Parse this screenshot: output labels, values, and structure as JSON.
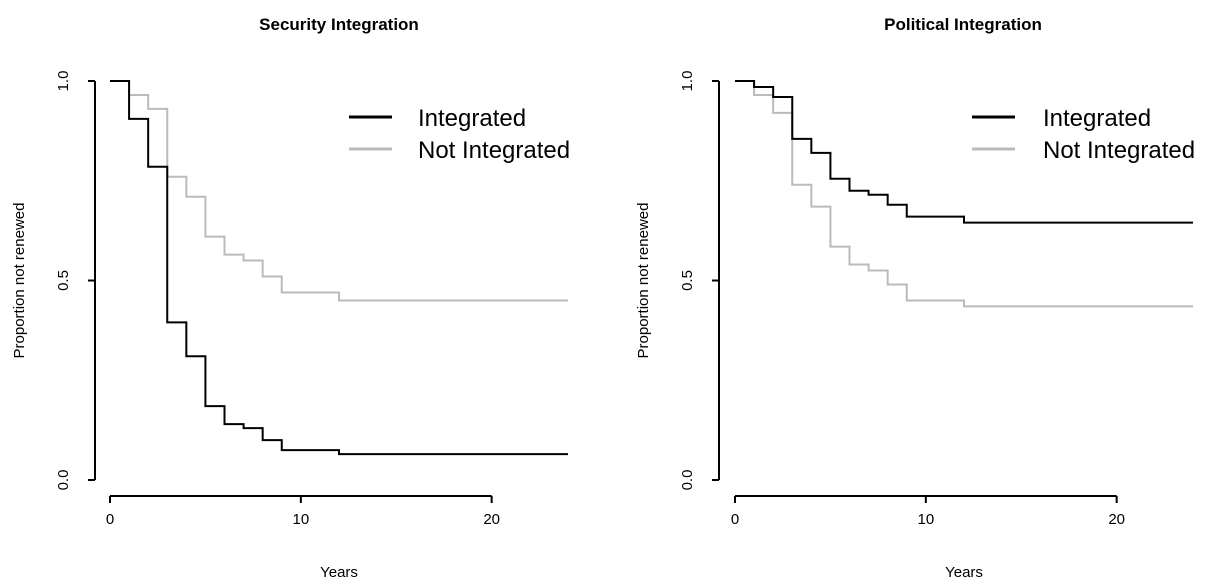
{
  "chart_data": [
    {
      "type": "line",
      "title": "Security Integration",
      "xlabel": "Years",
      "ylabel": "Proportion not renewed",
      "xlim": [
        0,
        24
      ],
      "ylim": [
        0,
        1
      ],
      "xticks": [
        0,
        10,
        20
      ],
      "yticks": [
        "0.0",
        "0.5",
        "1.0"
      ],
      "legend_placement": "top-right",
      "grid": false,
      "series": [
        {
          "name": "Integrated",
          "color": "#000000",
          "step": true,
          "x": [
            0,
            1,
            2,
            3,
            4,
            5,
            6,
            7,
            8,
            9,
            12,
            24
          ],
          "y": [
            1.0,
            0.905,
            0.785,
            0.395,
            0.31,
            0.185,
            0.14,
            0.13,
            0.1,
            0.075,
            0.065,
            0.065
          ]
        },
        {
          "name": "Not Integrated",
          "color": "#bbbbbb",
          "step": true,
          "x": [
            0,
            1,
            2,
            3,
            4,
            5,
            6,
            7,
            8,
            9,
            12,
            24
          ],
          "y": [
            1.0,
            0.965,
            0.93,
            0.76,
            0.71,
            0.61,
            0.565,
            0.55,
            0.51,
            0.47,
            0.45,
            0.45
          ]
        }
      ]
    },
    {
      "type": "line",
      "title": "Political Integration",
      "xlabel": "Years",
      "ylabel": "Proportion not renewed",
      "xlim": [
        0,
        24
      ],
      "ylim": [
        0,
        1
      ],
      "xticks": [
        0,
        10,
        20
      ],
      "yticks": [
        "0.0",
        "0.5",
        "1.0"
      ],
      "legend_placement": "top-right",
      "grid": false,
      "series": [
        {
          "name": "Integrated",
          "color": "#000000",
          "step": true,
          "x": [
            0,
            1,
            2,
            3,
            4,
            5,
            6,
            7,
            8,
            9,
            12,
            24
          ],
          "y": [
            1.0,
            0.985,
            0.96,
            0.855,
            0.82,
            0.755,
            0.725,
            0.715,
            0.69,
            0.66,
            0.645,
            0.645
          ]
        },
        {
          "name": "Not Integrated",
          "color": "#bbbbbb",
          "step": true,
          "x": [
            0,
            1,
            2,
            3,
            4,
            5,
            6,
            7,
            8,
            9,
            12,
            24
          ],
          "y": [
            1.0,
            0.965,
            0.92,
            0.74,
            0.685,
            0.585,
            0.54,
            0.525,
            0.49,
            0.45,
            0.435,
            0.435
          ]
        }
      ]
    }
  ]
}
